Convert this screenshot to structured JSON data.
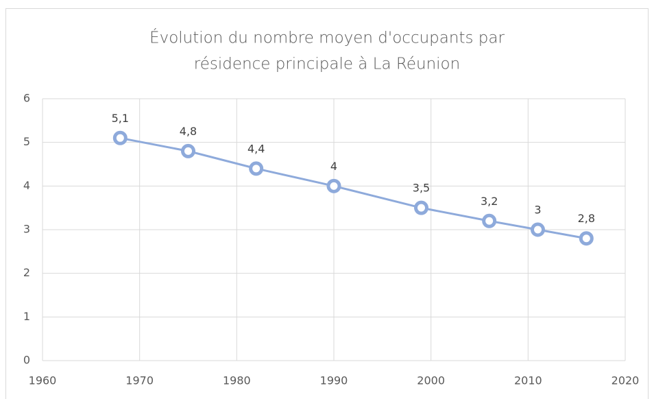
{
  "chart_data": {
    "type": "line",
    "title": [
      "Évolution du nombre moyen d'occupants par",
      "résidence principale à La Réunion"
    ],
    "x": [
      1968,
      1975,
      1982,
      1990,
      1999,
      2006,
      2011,
      2016
    ],
    "series": [
      {
        "color": "#8eaadb",
        "values": [
          5.1,
          4.8,
          4.4,
          4,
          3.5,
          3.2,
          3,
          2.8
        ],
        "value_labels": [
          "5,1",
          "4,8",
          "4,4",
          "4",
          "3,5",
          "3,2",
          "3",
          "2,8"
        ]
      }
    ],
    "xlim": [
      1960,
      2020
    ],
    "xticks": [
      1960,
      1970,
      1980,
      1990,
      2000,
      2010,
      2020
    ],
    "ylim": [
      0,
      6
    ],
    "yticks": [
      0,
      1,
      2,
      3,
      4,
      5,
      6
    ],
    "grid": true
  }
}
